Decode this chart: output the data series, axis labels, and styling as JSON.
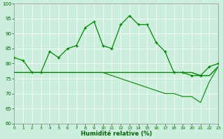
{
  "line1": [
    82,
    81,
    77,
    77,
    84,
    82,
    85,
    86,
    92,
    94,
    86,
    85,
    93,
    96,
    93,
    93,
    87,
    84,
    77,
    77,
    76,
    76,
    79,
    80
  ],
  "line2": [
    77,
    77,
    77,
    77,
    77,
    77,
    77,
    77,
    77,
    77,
    77,
    77,
    77,
    77,
    77,
    77,
    77,
    77,
    77,
    77,
    77,
    76,
    76,
    79
  ],
  "line3": [
    77,
    77,
    77,
    77,
    77,
    77,
    77,
    77,
    77,
    77,
    77,
    77,
    77,
    77,
    77,
    77,
    77,
    77,
    77,
    77,
    77,
    76,
    76,
    79
  ],
  "line4": [
    77,
    77,
    77,
    77,
    77,
    77,
    77,
    77,
    77,
    77,
    77,
    76,
    75,
    74,
    73,
    72,
    71,
    70,
    70,
    69,
    69,
    67,
    74,
    79
  ],
  "x": [
    0,
    1,
    2,
    3,
    4,
    5,
    6,
    7,
    8,
    9,
    10,
    11,
    12,
    13,
    14,
    15,
    16,
    17,
    18,
    19,
    20,
    21,
    22,
    23
  ],
  "xlabel": "Humidité relative (%)",
  "ylim": [
    60,
    100
  ],
  "yticks": [
    60,
    65,
    70,
    75,
    80,
    85,
    90,
    95,
    100
  ],
  "xticks": [
    0,
    1,
    2,
    3,
    4,
    5,
    6,
    7,
    8,
    9,
    10,
    11,
    12,
    13,
    14,
    15,
    16,
    17,
    18,
    19,
    20,
    21,
    22,
    23
  ],
  "line_color": "#008800",
  "marker": "+",
  "bg_color": "#cceedd",
  "grid_color": "#aaddcc",
  "label_color": "#006600"
}
